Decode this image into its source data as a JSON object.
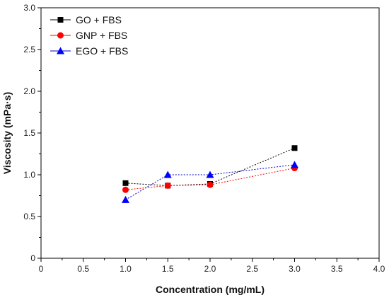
{
  "chart_data": {
    "type": "scatter",
    "title": "",
    "xlabel": "Concentration (mg/mL)",
    "ylabel": "Viscosity (mPa·s)",
    "xlim": [
      0,
      4.0
    ],
    "ylim": [
      0,
      3.0
    ],
    "xticks": [
      "0",
      "0.5",
      "1.0",
      "1.5",
      "2.0",
      "2.5",
      "3.0",
      "3.5",
      "4.0"
    ],
    "yticks": [
      "0",
      "0.5",
      "1.0",
      "1.5",
      "2.0",
      "2.5",
      "3.0"
    ],
    "grid": false,
    "legend_position": "top-left",
    "series": [
      {
        "name": "GO + FBS",
        "marker": "square",
        "color": "#000000",
        "line_color": "#000000",
        "x": [
          1.0,
          1.5,
          2.0,
          3.0
        ],
        "y": [
          0.9,
          0.87,
          0.89,
          1.32
        ]
      },
      {
        "name": "GNP + FBS",
        "marker": "circle",
        "color": "#ff0000",
        "line_color": "#ff0000",
        "x": [
          1.0,
          1.5,
          2.0,
          3.0
        ],
        "y": [
          0.82,
          0.87,
          0.88,
          1.08
        ]
      },
      {
        "name": "EGO + FBS",
        "marker": "triangle",
        "color": "#0000ff",
        "line_color": "#0000cc",
        "x": [
          1.0,
          1.5,
          2.0,
          3.0
        ],
        "y": [
          0.7,
          1.0,
          1.0,
          1.12
        ]
      }
    ]
  }
}
